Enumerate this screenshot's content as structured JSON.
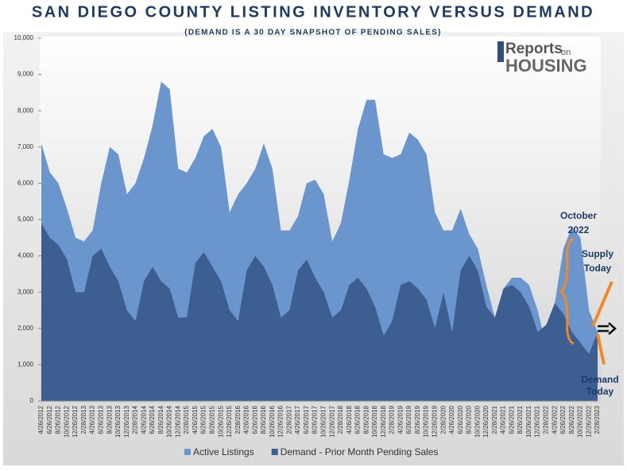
{
  "chart_data": {
    "type": "area",
    "title": "SAN DIEGO COUNTY LISTING INVENTORY VERSUS DEMAND",
    "subtitle": "(DEMAND IS A 30 DAY SNAPSHOT OF PENDING SALES)",
    "logo": [
      "Reports",
      "on",
      "HOUSING"
    ],
    "annotations": [
      [
        "October",
        "2022"
      ],
      [
        "Supply",
        "Today"
      ],
      [
        "Demand",
        "Today"
      ]
    ],
    "categories": [
      "4/26/2012",
      "6/26/2012",
      "8/26/2012",
      "10/26/2012",
      "12/26/2012",
      "2/28/2013",
      "4/26/2013",
      "6/26/2013",
      "8/26/2013",
      "10/26/2013",
      "12/26/2013",
      "2/28/2014",
      "4/26/2014",
      "6/26/2014",
      "8/26/2014",
      "10/26/2014",
      "12/26/2014",
      "2/28/2015",
      "4/26/2015",
      "6/26/2015",
      "8/26/2015",
      "10/26/2015",
      "12/26/2015",
      "2/28/2016",
      "4/26/2016",
      "6/26/2016",
      "8/26/2016",
      "10/26/2016",
      "12/26/2016",
      "2/28/2017",
      "4/26/2017",
      "6/26/2017",
      "8/26/2017",
      "10/26/2017",
      "12/26/2017",
      "2/28/2018",
      "4/26/2018",
      "6/26/2018",
      "8/26/2018",
      "10/26/2018",
      "12/26/2018",
      "2/28/2019",
      "4/26/2019",
      "6/26/2019",
      "8/26/2019",
      "10/26/2019",
      "12/26/2019",
      "2/28/2020",
      "4/26/2020",
      "6/26/2020",
      "8/26/2020",
      "10/26/2020",
      "12/26/2020",
      "2/28/2021",
      "4/26/2021",
      "6/26/2021",
      "8/26/2021",
      "10/26/2021",
      "12/26/2021",
      "2/28/2022",
      "4/26/2022",
      "6/26/2022",
      "8/26/2022",
      "10/26/2022",
      "12/26/2022",
      "2/28/2023"
    ],
    "series": [
      {
        "name": "Active Listings",
        "color": "#6b96cd",
        "values": [
          7100,
          6300,
          6000,
          5300,
          4500,
          4400,
          4700,
          6000,
          7000,
          6800,
          5700,
          6000,
          6700,
          7600,
          8800,
          8600,
          6400,
          6300,
          6700,
          7300,
          7500,
          7000,
          5200,
          5700,
          6000,
          6400,
          7100,
          6400,
          4700,
          4700,
          5100,
          6000,
          6100,
          5700,
          4400,
          4900,
          6100,
          7500,
          8300,
          8300,
          6800,
          6700,
          6800,
          7400,
          7200,
          6800,
          5200,
          4700,
          4700,
          5300,
          4600,
          4200,
          3200,
          2300,
          3100,
          3400,
          3400,
          3200,
          2500,
          1500,
          2700,
          4200,
          4800,
          4500,
          2500,
          1900
        ]
      },
      {
        "name": "Demand - Prior Month Pending Sales",
        "color": "#3c5e91",
        "values": [
          4900,
          4500,
          4300,
          3900,
          3000,
          3000,
          4000,
          4200,
          3700,
          3300,
          2500,
          2200,
          3300,
          3700,
          3300,
          3100,
          2300,
          2300,
          3800,
          4100,
          3700,
          3300,
          2500,
          2200,
          3600,
          4000,
          3700,
          3200,
          2300,
          2500,
          3600,
          3900,
          3400,
          3000,
          2300,
          2500,
          3200,
          3400,
          3100,
          2600,
          1800,
          2200,
          3200,
          3300,
          3100,
          2800,
          2000,
          3000,
          1900,
          3600,
          4000,
          3600,
          2600,
          2300,
          3100,
          3200,
          3000,
          2600,
          1900,
          2100,
          2700,
          2400,
          1900,
          1600,
          1300,
          1900
        ]
      }
    ],
    "ylim": [
      0,
      10000
    ],
    "yticks": [
      0,
      {
        "value": 1000,
        "label": "1,000"
      },
      {
        "value": 2000,
        "label": "2,000"
      },
      {
        "value": 3000,
        "label": "3,000"
      },
      {
        "value": 4000,
        "label": "4,000"
      },
      {
        "value": 5000,
        "label": "5,000"
      },
      {
        "value": 6000,
        "label": "6,000"
      },
      {
        "value": 7000,
        "label": "7,000"
      },
      {
        "value": 8000,
        "label": "8,000"
      },
      {
        "value": 9000,
        "label": "9,000"
      },
      {
        "value": 10000,
        "label": "10,000"
      }
    ],
    "legend": "bottom"
  }
}
